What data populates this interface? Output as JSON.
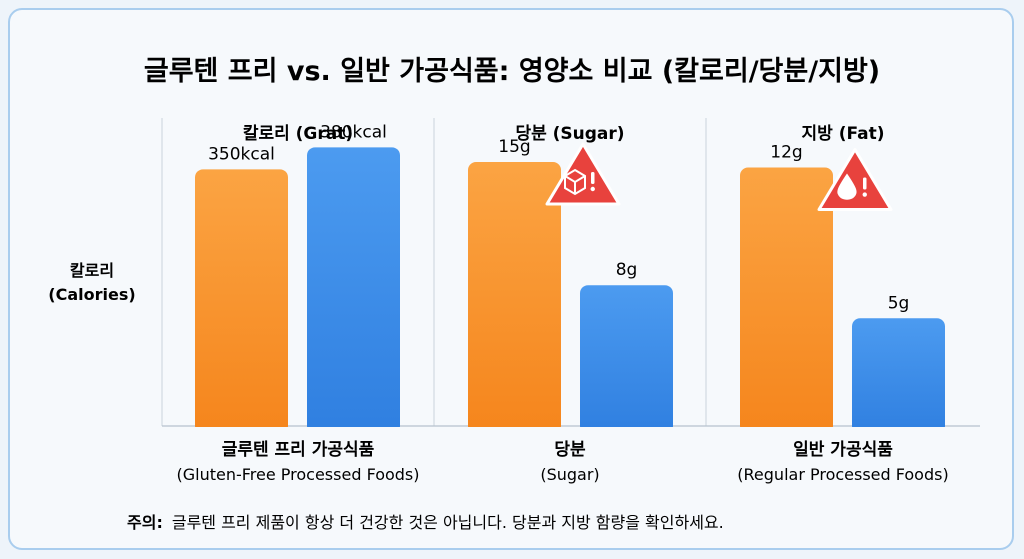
{
  "title": "글루텐 프리 vs. 일반 가공식품: 영양소 비교 (칼로리/당분/지방)",
  "y_axis_label": [
    "칼로리",
    "(Calories)"
  ],
  "note": {
    "label": "주의:",
    "text": "글루텐 프리 제품이 항상 더 건강한 것은 아닙니다. 당분과 지방 함량을 확인하세요."
  },
  "colors": {
    "gluten_free": "#f7942b",
    "regular": "#3a8ee6",
    "warning": "#e8423d"
  },
  "chart_data": [
    {
      "type": "bar",
      "title": "칼로리 (Grat)",
      "categories": [
        "Gluten-Free",
        "Regular"
      ],
      "series": [
        {
          "values": [
            350,
            380
          ]
        }
      ],
      "data_labels": [
        "350kcal",
        "380kcal"
      ],
      "ylim": [
        0,
        420
      ],
      "warning_icon": null
    },
    {
      "type": "bar",
      "title": "당분 (Sugar)",
      "categories": [
        "Gluten-Free",
        "Regular"
      ],
      "series": [
        {
          "values": [
            15,
            8
          ]
        }
      ],
      "data_labels": [
        "15g",
        "8g"
      ],
      "ylim": [
        0,
        17.5
      ],
      "warning_icon": "sugar-cube-warning-icon"
    },
    {
      "type": "bar",
      "title": "지방 (Fat)",
      "categories": [
        "Gluten-Free",
        "Regular"
      ],
      "series": [
        {
          "values": [
            12,
            5
          ]
        }
      ],
      "data_labels": [
        "12g",
        "5g"
      ],
      "ylim": [
        0,
        14.3
      ],
      "warning_icon": "fat-drop-warning-icon"
    }
  ],
  "x_labels": [
    {
      "line1": "글루텐 프리 가공식품",
      "line2": "(Gluten-Free Processed Foods)"
    },
    {
      "line1": "당분",
      "line2": "(Sugar)"
    },
    {
      "line1": "일반 가공식품",
      "line2": "(Regular Processed Foods)"
    }
  ]
}
